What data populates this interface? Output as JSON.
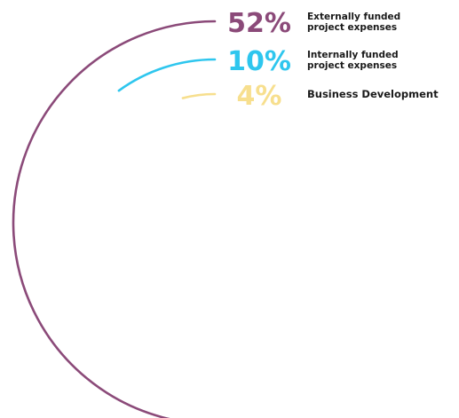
{
  "chart_data": {
    "type": "radial-bar",
    "unit": "%",
    "series": [
      {
        "value": 52,
        "display": "52%",
        "label_lines": [
          "Externally funded",
          "project expenses"
        ],
        "color": "#8b4a79"
      },
      {
        "value": 10,
        "display": "10%",
        "label_lines": [
          "Internally funded",
          "project expenses"
        ],
        "color": "#2ec6ee"
      },
      {
        "value": 4,
        "display": "4%",
        "label_lines": [
          "Business Development"
        ],
        "color": "#f7df8e"
      }
    ]
  }
}
